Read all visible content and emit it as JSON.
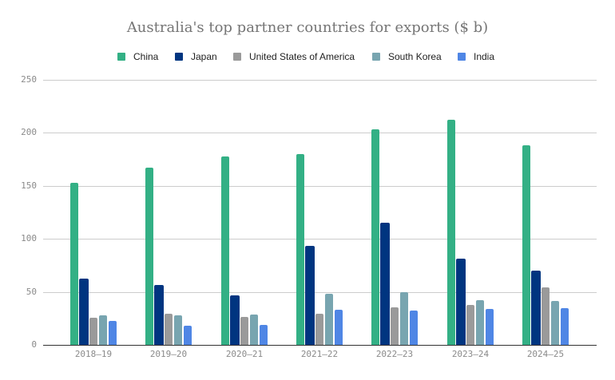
{
  "chart_data": {
    "type": "bar",
    "title": "Australia's top partner countries for exports ($ b)",
    "xlabel": "",
    "ylabel": "",
    "ylim": [
      0,
      250
    ],
    "yticks": [
      0,
      50,
      100,
      150,
      200,
      250
    ],
    "grid": true,
    "legend_position": "top",
    "categories": [
      "2018–19",
      "2019–20",
      "2020–21",
      "2021–22",
      "2022–23",
      "2023–24",
      "2024–25"
    ],
    "series": [
      {
        "name": "China",
        "color": "#33b085",
        "values": [
          152.6,
          167.2,
          177.7,
          180.0,
          203.3,
          212.3,
          188.3
        ]
      },
      {
        "name": "Japan",
        "color": "#003580",
        "values": [
          62.5,
          56.7,
          46.7,
          93.4,
          115.2,
          81.3,
          70.0
        ]
      },
      {
        "name": "United States of America",
        "color": "#9a9a9a",
        "values": [
          25.4,
          29.1,
          26.4,
          29.4,
          35.4,
          37.7,
          54.2
        ]
      },
      {
        "name": "South Korea",
        "color": "#78a5b0",
        "values": [
          27.9,
          28.1,
          28.6,
          48.2,
          49.7,
          42.2,
          41.4
        ]
      },
      {
        "name": "India",
        "color": "#4f86e5",
        "values": [
          22.4,
          18.3,
          18.8,
          33.1,
          32.4,
          33.9,
          34.6
        ]
      }
    ]
  }
}
